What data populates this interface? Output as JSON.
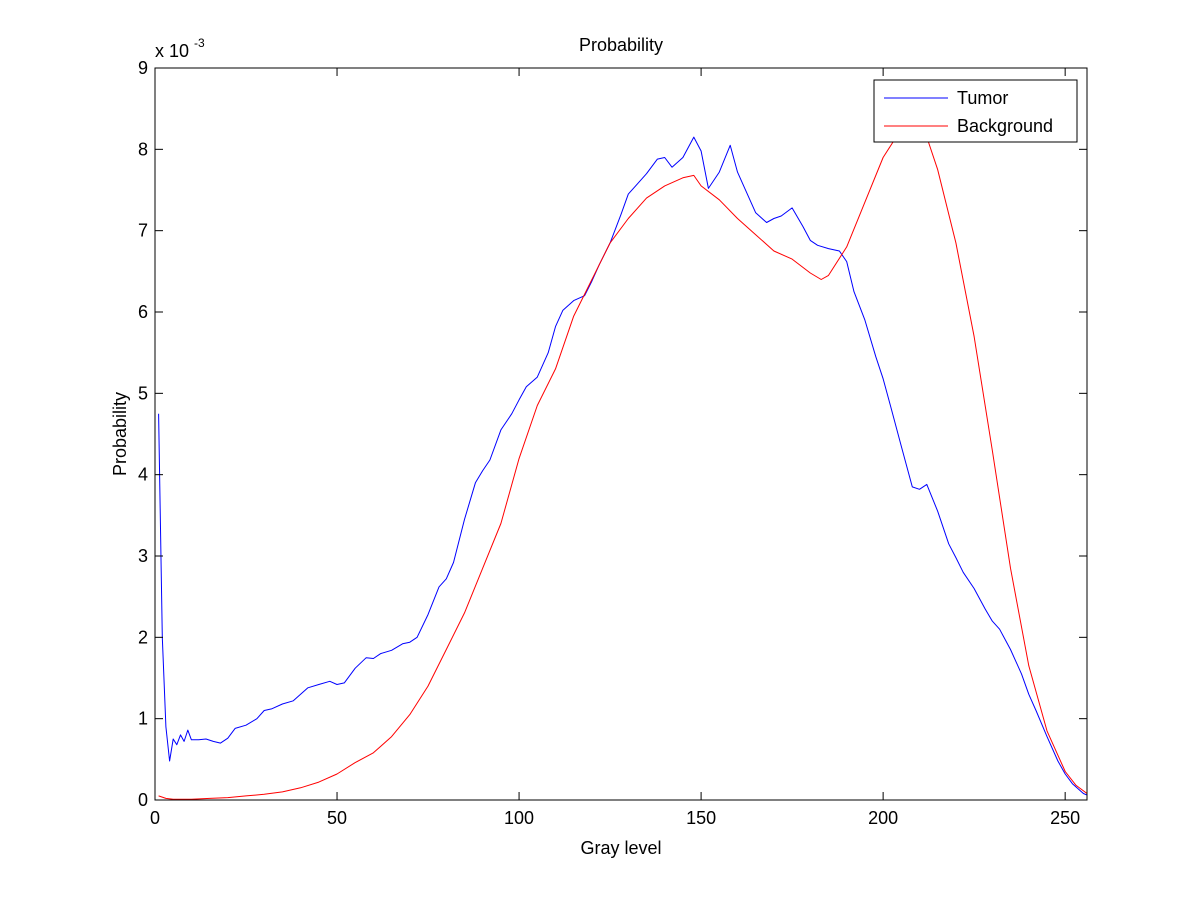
{
  "chart_data": {
    "type": "line",
    "title": "Probability",
    "xlabel": "Gray level",
    "ylabel": "Probability",
    "scale_label": "x 10",
    "scale_exponent": "-3",
    "xlim": [
      0,
      256
    ],
    "ylim": [
      0,
      9
    ],
    "xticks": [
      0,
      50,
      100,
      150,
      200,
      250
    ],
    "yticks": [
      0,
      1,
      2,
      3,
      4,
      5,
      6,
      7,
      8,
      9
    ],
    "grid": false,
    "legend_position": "top-right",
    "series": [
      {
        "name": "Tumor",
        "color": "#0000ff",
        "x": [
          1,
          2,
          3,
          4,
          5,
          6,
          7,
          8,
          9,
          10,
          12,
          14,
          16,
          18,
          20,
          22,
          25,
          28,
          30,
          32,
          35,
          38,
          40,
          42,
          45,
          48,
          50,
          52,
          55,
          58,
          60,
          62,
          65,
          68,
          70,
          72,
          75,
          78,
          80,
          82,
          85,
          88,
          90,
          92,
          95,
          98,
          100,
          102,
          105,
          108,
          110,
          112,
          115,
          118,
          120,
          122,
          125,
          128,
          130,
          132,
          135,
          138,
          140,
          142,
          145,
          148,
          150,
          152,
          155,
          158,
          160,
          162,
          165,
          168,
          170,
          172,
          175,
          178,
          180,
          182,
          185,
          188,
          190,
          192,
          195,
          198,
          200,
          202,
          205,
          208,
          210,
          212,
          215,
          218,
          220,
          222,
          225,
          228,
          230,
          232,
          235,
          238,
          240,
          242,
          245,
          248,
          250,
          252,
          255,
          256
        ],
        "y": [
          4.75,
          2.0,
          0.9,
          0.48,
          0.75,
          0.68,
          0.8,
          0.72,
          0.86,
          0.74,
          0.74,
          0.75,
          0.72,
          0.7,
          0.76,
          0.88,
          0.92,
          1.0,
          1.1,
          1.12,
          1.18,
          1.22,
          1.3,
          1.38,
          1.42,
          1.46,
          1.42,
          1.44,
          1.62,
          1.75,
          1.74,
          1.8,
          1.84,
          1.92,
          1.94,
          2.0,
          2.28,
          2.62,
          2.72,
          2.92,
          3.45,
          3.9,
          4.05,
          4.18,
          4.55,
          4.75,
          4.92,
          5.08,
          5.2,
          5.5,
          5.82,
          6.02,
          6.14,
          6.2,
          6.38,
          6.58,
          6.85,
          7.2,
          7.45,
          7.55,
          7.7,
          7.88,
          7.9,
          7.78,
          7.9,
          8.15,
          7.98,
          7.52,
          7.72,
          8.05,
          7.72,
          7.52,
          7.22,
          7.1,
          7.15,
          7.18,
          7.28,
          7.05,
          6.88,
          6.82,
          6.78,
          6.75,
          6.62,
          6.25,
          5.9,
          5.45,
          5.18,
          4.85,
          4.35,
          3.85,
          3.82,
          3.88,
          3.55,
          3.15,
          2.98,
          2.8,
          2.6,
          2.35,
          2.2,
          2.1,
          1.85,
          1.55,
          1.3,
          1.1,
          0.78,
          0.48,
          0.32,
          0.2,
          0.08,
          0.06
        ]
      },
      {
        "name": "Background",
        "color": "#ff0000",
        "x": [
          1,
          3,
          5,
          10,
          15,
          20,
          25,
          30,
          35,
          40,
          45,
          50,
          55,
          60,
          65,
          70,
          75,
          80,
          85,
          90,
          95,
          100,
          105,
          110,
          115,
          120,
          125,
          130,
          135,
          140,
          145,
          148,
          150,
          155,
          160,
          165,
          170,
          175,
          180,
          183,
          185,
          190,
          195,
          200,
          205,
          208,
          210,
          212,
          215,
          220,
          225,
          230,
          235,
          240,
          245,
          250,
          253,
          256
        ],
        "y": [
          0.05,
          0.02,
          0.01,
          0.01,
          0.02,
          0.03,
          0.05,
          0.07,
          0.1,
          0.15,
          0.22,
          0.32,
          0.46,
          0.58,
          0.78,
          1.05,
          1.4,
          1.85,
          2.3,
          2.85,
          3.4,
          4.2,
          4.85,
          5.3,
          5.95,
          6.4,
          6.85,
          7.15,
          7.4,
          7.55,
          7.65,
          7.68,
          7.55,
          7.38,
          7.15,
          6.95,
          6.75,
          6.65,
          6.48,
          6.4,
          6.45,
          6.8,
          7.35,
          7.9,
          8.25,
          8.45,
          8.4,
          8.15,
          7.75,
          6.85,
          5.7,
          4.3,
          2.85,
          1.65,
          0.85,
          0.35,
          0.18,
          0.08
        ]
      }
    ]
  }
}
